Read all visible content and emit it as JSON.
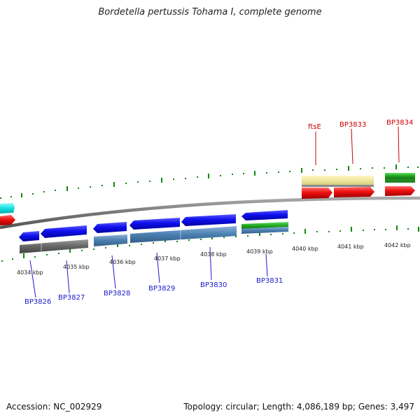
{
  "title": "Bordetella pertussis Tohama I, complete genome",
  "footer": {
    "accession": "Accession: NC_002929",
    "summary": "Topology: circular; Length: 4,086,189 bp; Genes: 3,497"
  },
  "colors": {
    "forward_gene_label": "#cc0000",
    "reverse_gene_label": "#1a1acc",
    "backbone": "#777777",
    "tick": "#118811"
  },
  "kbp_labels": [
    "4034 kbp",
    "4035 kbp",
    "4036 kbp",
    "4037 kbp",
    "4038 kbp",
    "4039 kbp",
    "4040 kbp",
    "4041 kbp",
    "4042 kbp"
  ],
  "forward_genes": [
    "ftsE",
    "BP3833",
    "BP3834"
  ],
  "reverse_genes": [
    "BP3826",
    "BP3827",
    "BP3828",
    "BP3829",
    "BP3830",
    "BP3831"
  ]
}
